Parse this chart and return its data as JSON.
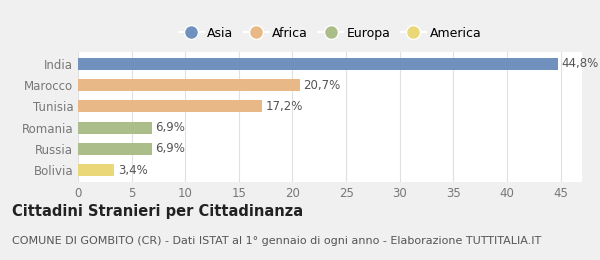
{
  "categories": [
    "India",
    "Marocco",
    "Tunisia",
    "Romania",
    "Russia",
    "Bolivia"
  ],
  "values": [
    44.8,
    20.7,
    17.2,
    6.9,
    6.9,
    3.4
  ],
  "labels": [
    "44,8%",
    "20,7%",
    "17,2%",
    "6,9%",
    "6,9%",
    "3,4%"
  ],
  "bar_colors": [
    "#7090be",
    "#e8b887",
    "#e8b887",
    "#abbe8a",
    "#abbe8a",
    "#ead878"
  ],
  "legend_items": [
    {
      "label": "Asia",
      "color": "#7090be"
    },
    {
      "label": "Africa",
      "color": "#e8b887"
    },
    {
      "label": "Europa",
      "color": "#abbe8a"
    },
    {
      "label": "America",
      "color": "#ead878"
    }
  ],
  "xlim": [
    0,
    47
  ],
  "xticks": [
    0,
    5,
    10,
    15,
    20,
    25,
    30,
    35,
    40,
    45
  ],
  "title": "Cittadini Stranieri per Cittadinanza",
  "subtitle": "COMUNE DI GOMBITO (CR) - Dati ISTAT al 1° gennaio di ogni anno - Elaborazione TUTTITALIA.IT",
  "figure_bg": "#f0f0f0",
  "plot_bg": "#ffffff",
  "bar_height": 0.55,
  "title_fontsize": 10.5,
  "subtitle_fontsize": 8,
  "label_fontsize": 8.5,
  "tick_fontsize": 8.5,
  "legend_fontsize": 9
}
